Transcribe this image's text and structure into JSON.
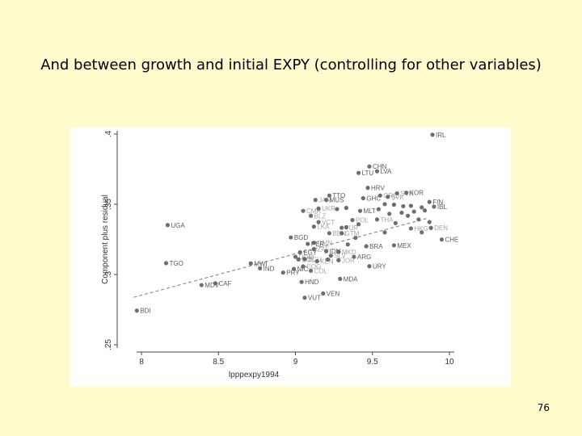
{
  "slide": {
    "title": "And between growth and initial EXPY (controlling for other variables)",
    "page_number": "76"
  },
  "chart_data": {
    "type": "scatter",
    "title": "",
    "xlabel": "lpppexpy1994",
    "ylabel": "Component plus residual",
    "xlim": [
      7.95,
      10.05
    ],
    "ylim": [
      0.25,
      0.4
    ],
    "x_ticks": [
      {
        "value": 8,
        "label": "8"
      },
      {
        "value": 8.5,
        "label": "8.5"
      },
      {
        "value": 9,
        "label": "9"
      },
      {
        "value": 9.5,
        "label": "9.5"
      },
      {
        "value": 10,
        "label": "10"
      }
    ],
    "y_ticks": [
      {
        "value": 0.25,
        "label": ".25"
      },
      {
        "value": 0.3,
        "label": ".3"
      },
      {
        "value": 0.35,
        "label": ".35"
      },
      {
        "value": 0.4,
        "label": ".4"
      }
    ],
    "grid": false,
    "fit_line": {
      "style": "dashed",
      "x": [
        7.95,
        9.85
      ],
      "y": [
        0.2838,
        0.3398
      ]
    },
    "points": [
      {
        "label": "IRL",
        "x": 9.89,
        "y": 0.3995
      },
      {
        "label": "CHN",
        "x": 9.48,
        "y": 0.3769
      },
      {
        "label": "LVA",
        "x": 9.53,
        "y": 0.3735
      },
      {
        "label": "LTU",
        "x": 9.41,
        "y": 0.3723
      },
      {
        "label": "HRV",
        "x": 9.47,
        "y": 0.3617
      },
      {
        "label": "KOR",
        "x": 9.72,
        "y": 0.3582
      },
      {
        "label": "TTO",
        "x": 9.22,
        "y": 0.3562
      },
      {
        "label": "GHC",
        "x": 9.44,
        "y": 0.3543
      },
      {
        "label": "MUS",
        "x": 9.2,
        "y": 0.3531
      },
      {
        "label": "FIN",
        "x": 9.87,
        "y": 0.3517
      },
      {
        "label": "IBL",
        "x": 9.9,
        "y": 0.3483
      },
      {
        "label": "MLT",
        "x": 9.42,
        "y": 0.3453
      },
      {
        "label": "UGA",
        "x": 8.17,
        "y": 0.3352
      },
      {
        "label": "CHE",
        "x": 9.95,
        "y": 0.3249
      },
      {
        "label": "BGD",
        "x": 8.97,
        "y": 0.3264
      },
      {
        "label": "PER",
        "x": 9.08,
        "y": 0.3218
      },
      {
        "label": "MEX",
        "x": 9.64,
        "y": 0.3208
      },
      {
        "label": "BRA",
        "x": 9.46,
        "y": 0.3201
      },
      {
        "label": "IDN",
        "x": 9.2,
        "y": 0.3166
      },
      {
        "label": "ARG",
        "x": 9.38,
        "y": 0.3126
      },
      {
        "label": "EGY",
        "x": 9.03,
        "y": 0.3158
      },
      {
        "label": "TGO",
        "x": 8.16,
        "y": 0.3081
      },
      {
        "label": "MWI",
        "x": 8.71,
        "y": 0.3079
      },
      {
        "label": "IND",
        "x": 8.77,
        "y": 0.3044
      },
      {
        "label": "NIC",
        "x": 8.99,
        "y": 0.304
      },
      {
        "label": "URY",
        "x": 9.48,
        "y": 0.3059
      },
      {
        "label": "PRY",
        "x": 8.92,
        "y": 0.3014
      },
      {
        "label": "HND",
        "x": 9.04,
        "y": 0.2947
      },
      {
        "label": "MDA",
        "x": 9.29,
        "y": 0.2969
      },
      {
        "label": "CAF",
        "x": 8.48,
        "y": 0.2938
      },
      {
        "label": "MDV",
        "x": 8.39,
        "y": 0.2925
      },
      {
        "label": "VEN",
        "x": 9.18,
        "y": 0.2865
      },
      {
        "label": "VUT",
        "x": 9.06,
        "y": 0.2835
      },
      {
        "label": "BDI",
        "x": 7.97,
        "y": 0.2743
      }
    ],
    "unlabeled_points": [
      {
        "x": 9.55,
        "y": 0.3562
      },
      {
        "x": 9.6,
        "y": 0.3553
      },
      {
        "x": 9.66,
        "y": 0.3578
      },
      {
        "x": 9.58,
        "y": 0.3501
      },
      {
        "x": 9.64,
        "y": 0.3497
      },
      {
        "x": 9.7,
        "y": 0.3486
      },
      {
        "x": 9.75,
        "y": 0.3489
      },
      {
        "x": 9.82,
        "y": 0.3478
      },
      {
        "x": 9.84,
        "y": 0.3456
      },
      {
        "x": 9.77,
        "y": 0.3448
      },
      {
        "x": 9.69,
        "y": 0.344
      },
      {
        "x": 9.61,
        "y": 0.3432
      },
      {
        "x": 9.54,
        "y": 0.3465
      },
      {
        "x": 9.73,
        "y": 0.3418
      },
      {
        "x": 9.8,
        "y": 0.3392
      },
      {
        "x": 9.87,
        "y": 0.3373
      },
      {
        "x": 9.65,
        "y": 0.3366
      },
      {
        "x": 9.53,
        "y": 0.3392
      },
      {
        "x": 9.37,
        "y": 0.3388
      },
      {
        "x": 9.3,
        "y": 0.3333
      },
      {
        "x": 9.15,
        "y": 0.3373
      },
      {
        "x": 9.1,
        "y": 0.3418
      },
      {
        "x": 9.05,
        "y": 0.3453
      },
      {
        "x": 9.15,
        "y": 0.347
      },
      {
        "x": 9.13,
        "y": 0.3531
      },
      {
        "x": 9.33,
        "y": 0.3474
      },
      {
        "x": 9.27,
        "y": 0.3466
      },
      {
        "x": 9.12,
        "y": 0.3341
      },
      {
        "x": 9.22,
        "y": 0.3294
      },
      {
        "x": 9.3,
        "y": 0.3294
      },
      {
        "x": 9.33,
        "y": 0.3336
      },
      {
        "x": 9.12,
        "y": 0.3226
      },
      {
        "x": 9.12,
        "y": 0.3181
      },
      {
        "x": 9.28,
        "y": 0.3162
      },
      {
        "x": 9.23,
        "y": 0.3134
      },
      {
        "x": 9.0,
        "y": 0.3126
      },
      {
        "x": 9.02,
        "y": 0.3107
      },
      {
        "x": 9.06,
        "y": 0.311
      },
      {
        "x": 9.14,
        "y": 0.3094
      },
      {
        "x": 9.28,
        "y": 0.3102
      },
      {
        "x": 9.41,
        "y": 0.3358
      },
      {
        "x": 9.58,
        "y": 0.33
      },
      {
        "x": 9.75,
        "y": 0.3328
      },
      {
        "x": 9.88,
        "y": 0.3332
      },
      {
        "x": 9.82,
        "y": 0.33
      },
      {
        "x": 9.39,
        "y": 0.3261
      },
      {
        "x": 9.21,
        "y": 0.3107
      },
      {
        "x": 9.34,
        "y": 0.3214
      },
      {
        "x": 9.05,
        "y": 0.3058
      },
      {
        "x": 9.1,
        "y": 0.3027
      }
    ],
    "obscured_labels": [
      {
        "text": "GRC",
        "x": 9.55,
        "y": 0.3562
      },
      {
        "text": "SVK",
        "x": 9.6,
        "y": 0.3553
      },
      {
        "text": "SVN",
        "x": 9.66,
        "y": 0.3578
      },
      {
        "text": "JAM",
        "x": 9.13,
        "y": 0.3531
      },
      {
        "text": "UKR",
        "x": 9.15,
        "y": 0.347
      },
      {
        "text": "CMR",
        "x": 9.05,
        "y": 0.3453
      },
      {
        "text": "BLZ",
        "x": 9.1,
        "y": 0.3418
      },
      {
        "text": "VCT",
        "x": 9.15,
        "y": 0.3373
      },
      {
        "text": "LKA",
        "x": 9.12,
        "y": 0.3341
      },
      {
        "text": "POL",
        "x": 9.37,
        "y": 0.3388
      },
      {
        "text": "THA",
        "x": 9.53,
        "y": 0.3392
      },
      {
        "text": "TUR",
        "x": 9.3,
        "y": 0.3333
      },
      {
        "text": "BEN",
        "x": 9.22,
        "y": 0.3294
      },
      {
        "text": "HKG",
        "x": 9.75,
        "y": 0.3328
      },
      {
        "text": "DEN",
        "x": 9.88,
        "y": 0.3332
      },
      {
        "text": "GTM",
        "x": 9.3,
        "y": 0.3294
      },
      {
        "text": "OMN",
        "x": 9.12,
        "y": 0.3226
      },
      {
        "text": "ZAF",
        "x": 9.12,
        "y": 0.3181
      },
      {
        "text": "MKD",
        "x": 9.28,
        "y": 0.3162
      },
      {
        "text": "SLV",
        "x": 9.23,
        "y": 0.3134
      },
      {
        "text": "DOM",
        "x": 9.0,
        "y": 0.3126
      },
      {
        "text": "BOL",
        "x": 9.02,
        "y": 0.3107
      },
      {
        "text": "ECU",
        "x": 9.06,
        "y": 0.311
      },
      {
        "text": "KEN",
        "x": 9.14,
        "y": 0.3094
      },
      {
        "text": "JOR",
        "x": 9.28,
        "y": 0.3102
      },
      {
        "text": "COG",
        "x": 9.05,
        "y": 0.3058
      },
      {
        "text": "COL",
        "x": 9.1,
        "y": 0.3027
      }
    ],
    "legend": "none",
    "colors": {
      "point": "#6e6e6e",
      "label": "#5a5a5a",
      "line": "#7a7a7a",
      "axis": "#444444",
      "plot_bg": "#ffffff",
      "slide_bg": "#fffbcc"
    }
  }
}
